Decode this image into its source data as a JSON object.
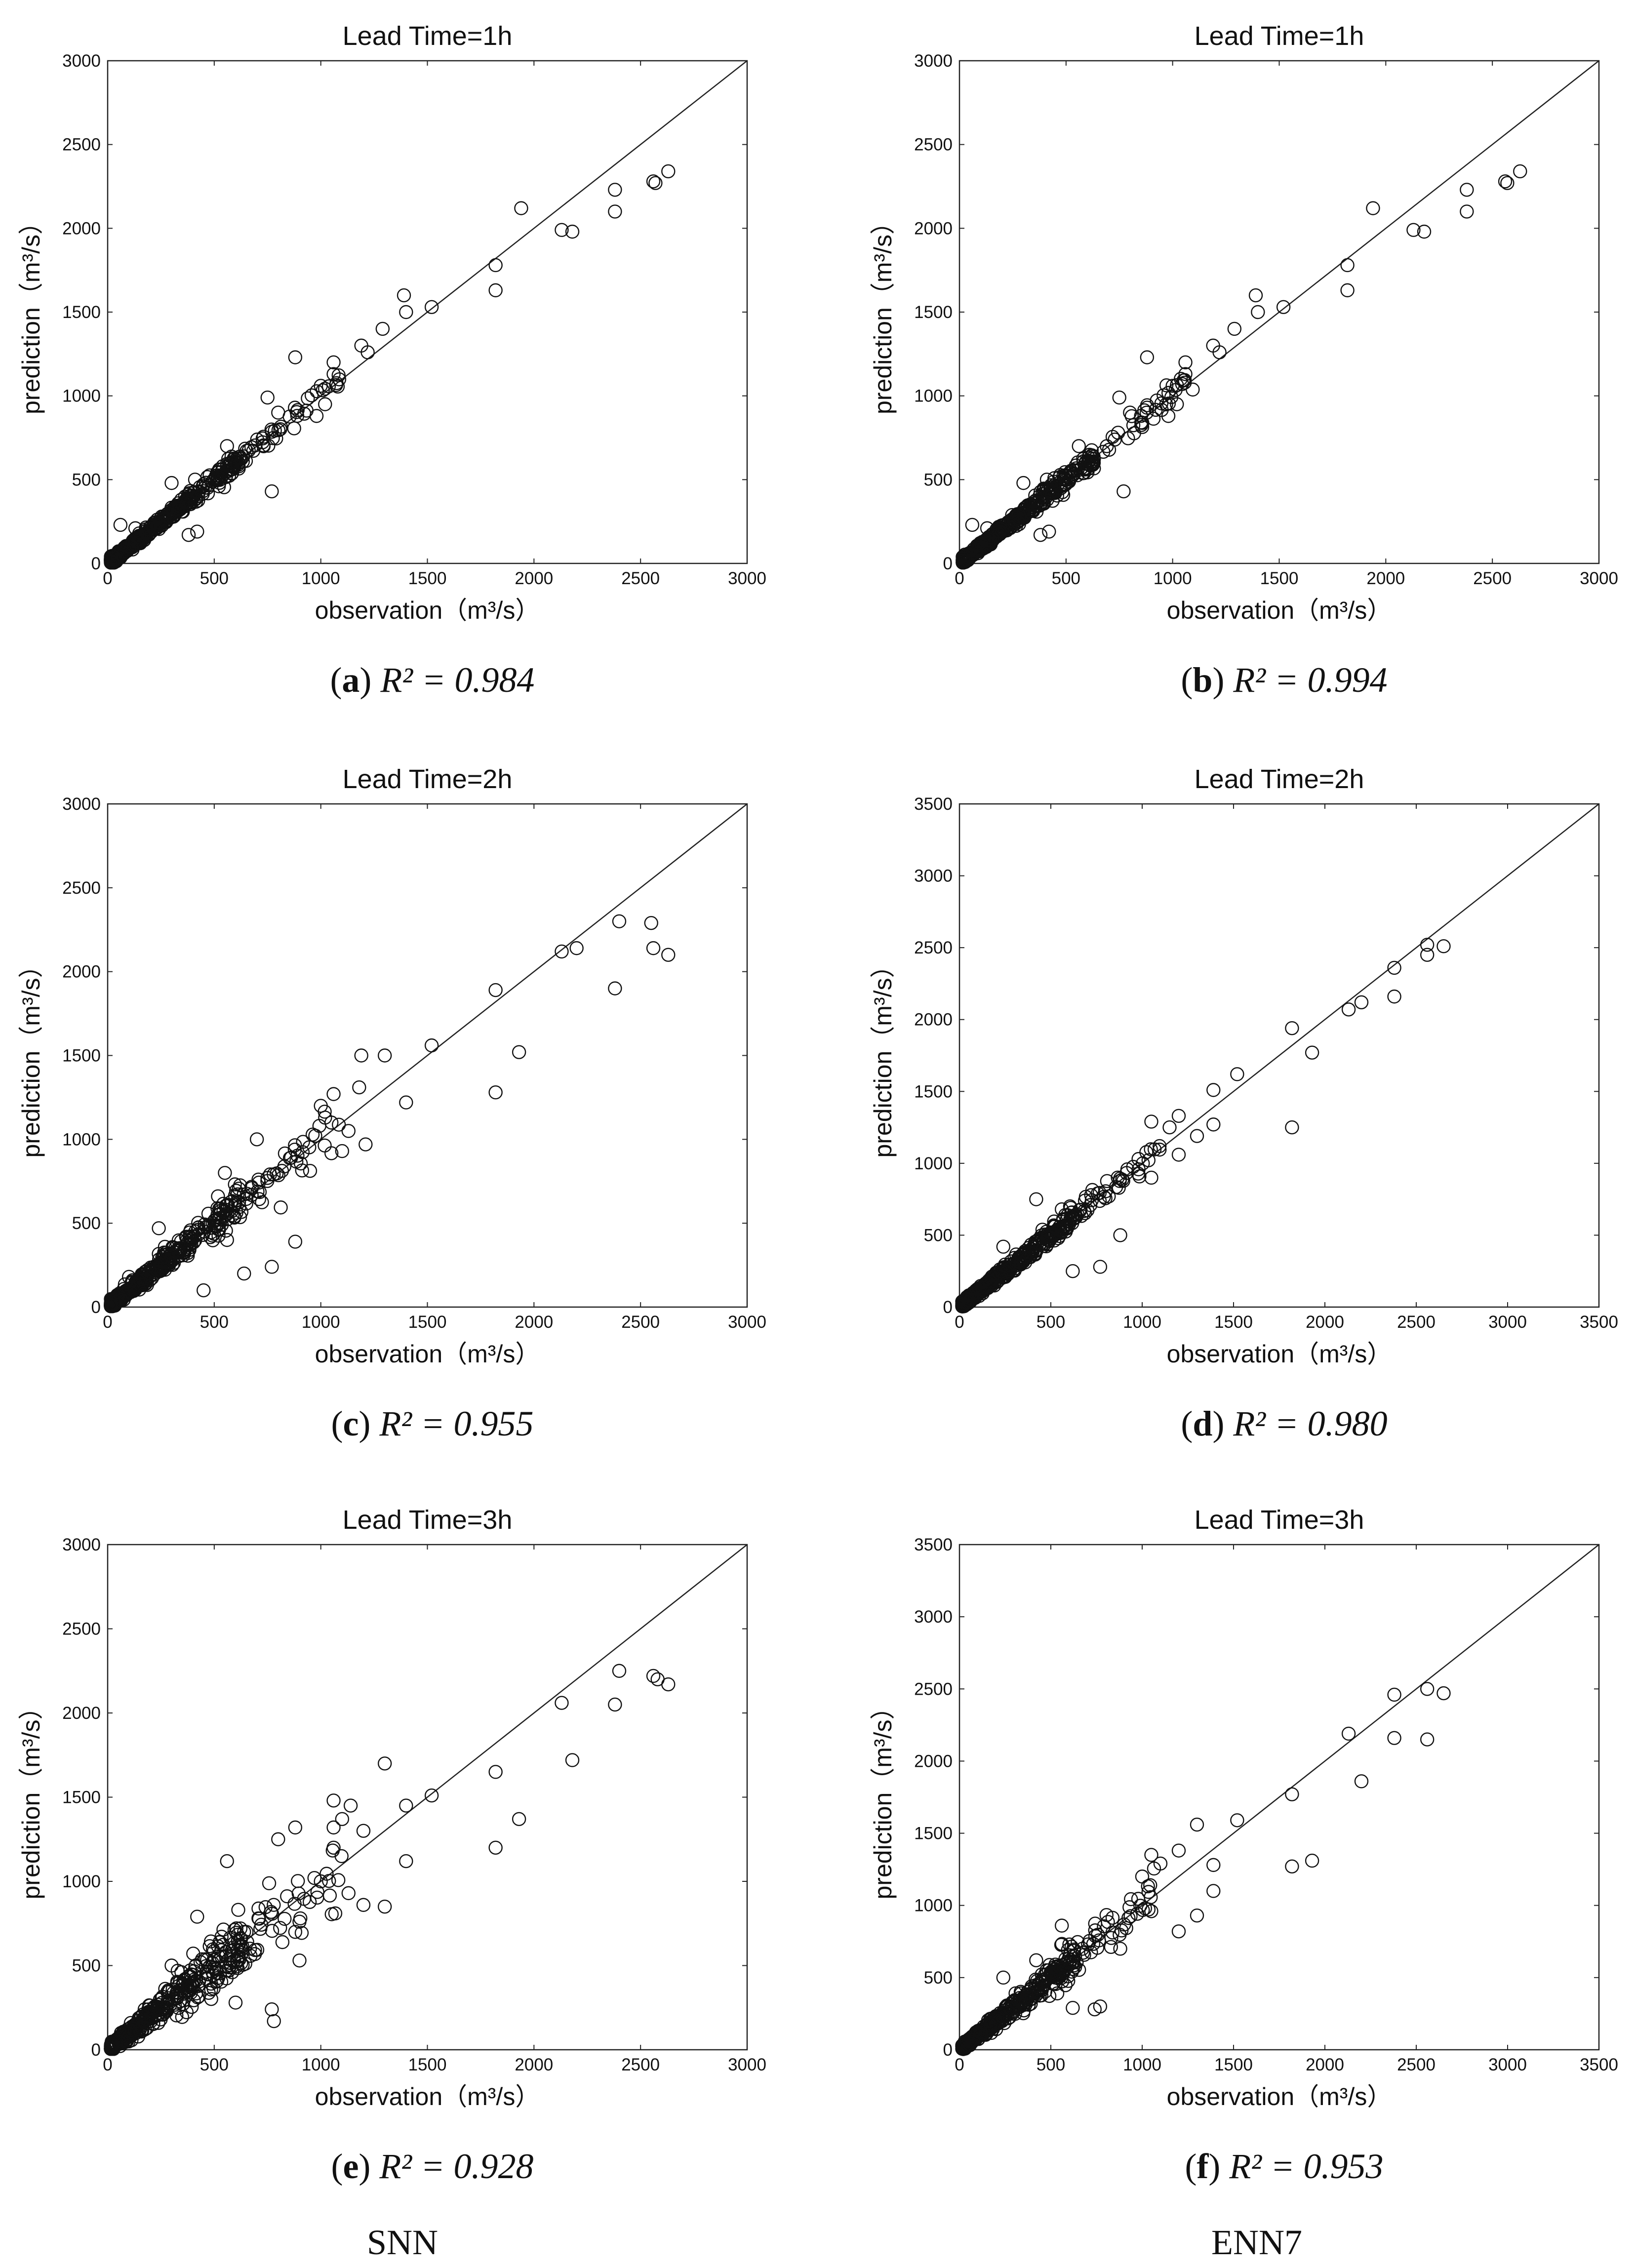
{
  "panels": [
    {
      "id": "a",
      "title": "Lead Time=1h",
      "xlabel": "observation（m³/s）",
      "ylabel": "prediction（m³/s）",
      "xlim": [
        0,
        3000
      ],
      "ylim": [
        0,
        3000
      ],
      "xticks": [
        0,
        500,
        1000,
        1500,
        2000,
        2500,
        3000
      ],
      "yticks": [
        0,
        500,
        1000,
        1500,
        2000,
        2500,
        3000
      ],
      "caption_letter": "a",
      "caption_r2": "R² = 0.984",
      "spread": 0.05,
      "outliers": [
        [
          770,
          430
        ],
        [
          380,
          170
        ],
        [
          420,
          190
        ],
        [
          880,
          1230
        ],
        [
          1940,
          2120
        ],
        [
          2180,
          1980
        ],
        [
          2380,
          2100
        ],
        [
          2130,
          1990
        ],
        [
          2380,
          2230
        ],
        [
          2560,
          2280
        ],
        [
          2630,
          2340
        ],
        [
          1820,
          1630
        ],
        [
          1820,
          1780
        ],
        [
          1390,
          1600
        ],
        [
          1400,
          1500
        ],
        [
          1520,
          1530
        ],
        [
          1290,
          1400
        ],
        [
          1190,
          1300
        ],
        [
          1060,
          1200
        ],
        [
          1000,
          1060
        ],
        [
          1020,
          950
        ],
        [
          750,
          990
        ],
        [
          800,
          900
        ],
        [
          300,
          480
        ],
        [
          410,
          500
        ],
        [
          60,
          230
        ],
        [
          130,
          210
        ],
        [
          560,
          700
        ],
        [
          980,
          880
        ],
        [
          1220,
          1260
        ],
        [
          1060,
          1130
        ],
        [
          2570,
          2270
        ]
      ]
    },
    {
      "id": "b",
      "title": "Lead Time=1h",
      "xlabel": "observation（m³/s）",
      "ylabel": "prediction（m³/s）",
      "xlim": [
        0,
        3000
      ],
      "ylim": [
        0,
        3000
      ],
      "xticks": [
        0,
        500,
        1000,
        1500,
        2000,
        2500,
        3000
      ],
      "yticks": [
        0,
        500,
        1000,
        1500,
        2000,
        2500,
        3000
      ],
      "caption_letter": "b",
      "caption_r2": "R² = 0.994",
      "spread": 0.05,
      "outliers": [
        [
          770,
          430
        ],
        [
          380,
          170
        ],
        [
          420,
          190
        ],
        [
          880,
          1230
        ],
        [
          1940,
          2120
        ],
        [
          2180,
          1980
        ],
        [
          2380,
          2100
        ],
        [
          2130,
          1990
        ],
        [
          2380,
          2230
        ],
        [
          2560,
          2280
        ],
        [
          2630,
          2340
        ],
        [
          1820,
          1630
        ],
        [
          1820,
          1780
        ],
        [
          1390,
          1600
        ],
        [
          1400,
          1500
        ],
        [
          1520,
          1530
        ],
        [
          1290,
          1400
        ],
        [
          1190,
          1300
        ],
        [
          1060,
          1200
        ],
        [
          1000,
          1060
        ],
        [
          1020,
          950
        ],
        [
          750,
          990
        ],
        [
          800,
          900
        ],
        [
          300,
          480
        ],
        [
          410,
          500
        ],
        [
          60,
          230
        ],
        [
          130,
          210
        ],
        [
          560,
          700
        ],
        [
          980,
          880
        ],
        [
          1220,
          1260
        ],
        [
          1060,
          1130
        ],
        [
          2570,
          2270
        ]
      ]
    },
    {
      "id": "c",
      "title": "Lead Time=2h",
      "xlabel": "observation（m³/s）",
      "ylabel": "prediction（m³/s）",
      "xlim": [
        0,
        3000
      ],
      "ylim": [
        0,
        3000
      ],
      "xticks": [
        0,
        500,
        1000,
        1500,
        2000,
        2500,
        3000
      ],
      "yticks": [
        0,
        500,
        1000,
        1500,
        2000,
        2500,
        3000
      ],
      "caption_letter": "c",
      "caption_r2": "R² = 0.955",
      "spread": 0.1,
      "outliers": [
        [
          1820,
          1280
        ],
        [
          1930,
          1520
        ],
        [
          2380,
          1900
        ],
        [
          2400,
          2300
        ],
        [
          2550,
          2290
        ],
        [
          2630,
          2100
        ],
        [
          2560,
          2140
        ],
        [
          2130,
          2120
        ],
        [
          2200,
          2140
        ],
        [
          1820,
          1890
        ],
        [
          1520,
          1560
        ],
        [
          1400,
          1220
        ],
        [
          1300,
          1500
        ],
        [
          1190,
          1500
        ],
        [
          1210,
          970
        ],
        [
          1100,
          930
        ],
        [
          880,
          390
        ],
        [
          770,
          240
        ],
        [
          640,
          200
        ],
        [
          560,
          400
        ],
        [
          450,
          100
        ],
        [
          550,
          800
        ],
        [
          700,
          1000
        ],
        [
          1000,
          1200
        ],
        [
          240,
          470
        ],
        [
          100,
          180
        ],
        [
          1060,
          1270
        ],
        [
          1180,
          1310
        ],
        [
          1050,
          1100
        ],
        [
          1130,
          1050
        ]
      ]
    },
    {
      "id": "d",
      "title": "Lead Time=2h",
      "xlabel": "observation（m³/s）",
      "ylabel": "prediction（m³/s）",
      "xlim": [
        0,
        3500
      ],
      "ylim": [
        0,
        3500
      ],
      "xticks": [
        0,
        500,
        1000,
        1500,
        2000,
        2500,
        3000,
        3500
      ],
      "yticks": [
        0,
        500,
        1000,
        1500,
        2000,
        2500,
        3000,
        3500
      ],
      "caption_letter": "d",
      "caption_r2": "R² = 0.980",
      "spread": 0.07,
      "outliers": [
        [
          1820,
          1250
        ],
        [
          1930,
          1770
        ],
        [
          1820,
          1940
        ],
        [
          2380,
          2160
        ],
        [
          2380,
          2360
        ],
        [
          2130,
          2070
        ],
        [
          2200,
          2120
        ],
        [
          2560,
          2520
        ],
        [
          2560,
          2450
        ],
        [
          2650,
          2510
        ],
        [
          1520,
          1620
        ],
        [
          1390,
          1510
        ],
        [
          1390,
          1270
        ],
        [
          1300,
          1190
        ],
        [
          1200,
          1060
        ],
        [
          1200,
          1330
        ],
        [
          1050,
          1290
        ],
        [
          1050,
          900
        ],
        [
          880,
          500
        ],
        [
          770,
          280
        ],
        [
          620,
          250
        ],
        [
          560,
          680
        ],
        [
          420,
          750
        ],
        [
          240,
          420
        ],
        [
          980,
          1030
        ],
        [
          1150,
          1250
        ]
      ]
    },
    {
      "id": "e",
      "title": "Lead Time=3h",
      "xlabel": "observation（m³/s）",
      "ylabel": "prediction（m³/s）",
      "xlim": [
        0,
        3000
      ],
      "ylim": [
        0,
        3000
      ],
      "xticks": [
        0,
        500,
        1000,
        1500,
        2000,
        2500,
        3000
      ],
      "yticks": [
        0,
        500,
        1000,
        1500,
        2000,
        2500,
        3000
      ],
      "caption_letter": "e",
      "caption_r2": "R² = 0.928",
      "spread": 0.15,
      "outliers": [
        [
          1820,
          1200
        ],
        [
          1820,
          1650
        ],
        [
          1930,
          1370
        ],
        [
          2180,
          1720
        ],
        [
          2130,
          2060
        ],
        [
          2380,
          2050
        ],
        [
          2400,
          2250
        ],
        [
          2560,
          2220
        ],
        [
          2580,
          2200
        ],
        [
          2630,
          2170
        ],
        [
          1520,
          1510
        ],
        [
          1400,
          1120
        ],
        [
          1400,
          1450
        ],
        [
          1300,
          1700
        ],
        [
          1300,
          850
        ],
        [
          1200,
          860
        ],
        [
          1130,
          930
        ],
        [
          1060,
          1480
        ],
        [
          1060,
          1200
        ],
        [
          1140,
          1450
        ],
        [
          1200,
          1300
        ],
        [
          880,
          1320
        ],
        [
          800,
          1250
        ],
        [
          900,
          530
        ],
        [
          770,
          240
        ],
        [
          780,
          170
        ],
        [
          560,
          1120
        ],
        [
          600,
          280
        ],
        [
          420,
          790
        ],
        [
          300,
          500
        ],
        [
          1000,
          1000
        ],
        [
          970,
          1020
        ],
        [
          1100,
          1370
        ],
        [
          1060,
          1320
        ],
        [
          880,
          700
        ],
        [
          640,
          700
        ]
      ]
    },
    {
      "id": "f",
      "title": "Lead Time=3h",
      "xlabel": "observation（m³/s）",
      "ylabel": "prediction（m³/s）",
      "xlim": [
        0,
        3500
      ],
      "ylim": [
        0,
        3500
      ],
      "xticks": [
        0,
        500,
        1000,
        1500,
        2000,
        2500,
        3000,
        3500
      ],
      "yticks": [
        0,
        500,
        1000,
        1500,
        2000,
        2500,
        3000,
        3500
      ],
      "caption_letter": "f",
      "caption_r2": "R² = 0.953",
      "spread": 0.1,
      "outliers": [
        [
          1820,
          1270
        ],
        [
          1930,
          1310
        ],
        [
          1820,
          1770
        ],
        [
          2130,
          2190
        ],
        [
          2200,
          1860
        ],
        [
          2380,
          2160
        ],
        [
          2380,
          2460
        ],
        [
          2560,
          2500
        ],
        [
          2560,
          2150
        ],
        [
          2650,
          2470
        ],
        [
          1520,
          1590
        ],
        [
          1390,
          1280
        ],
        [
          1390,
          1100
        ],
        [
          1300,
          1560
        ],
        [
          1300,
          930
        ],
        [
          1200,
          820
        ],
        [
          1200,
          1380
        ],
        [
          1050,
          1350
        ],
        [
          1050,
          960
        ],
        [
          880,
          700
        ],
        [
          770,
          300
        ],
        [
          740,
          280
        ],
        [
          620,
          290
        ],
        [
          560,
          860
        ],
        [
          420,
          620
        ],
        [
          240,
          500
        ],
        [
          1000,
          1200
        ],
        [
          1100,
          1290
        ]
      ]
    }
  ],
  "group_labels": {
    "left": "SNN",
    "right": "ENN7"
  }
}
